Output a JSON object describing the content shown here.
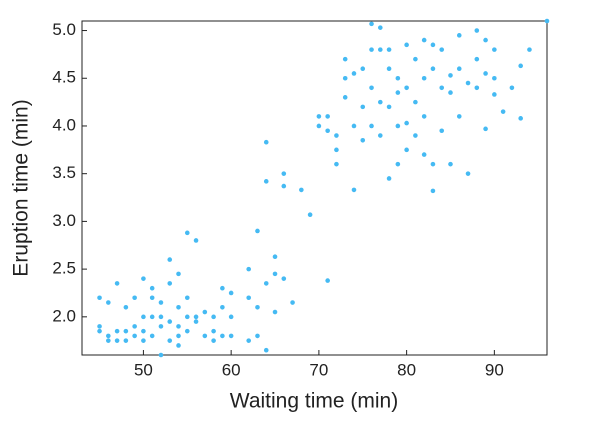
{
  "chart_data": {
    "type": "scatter",
    "x_label": "Waiting time (min)",
    "y_label": "Eruption time (min)",
    "xlim": [
      43,
      96
    ],
    "ylim": [
      1.6,
      5.1
    ],
    "xticks": [
      50,
      60,
      70,
      80,
      90
    ],
    "yticks": [
      {
        "value": 2.0,
        "label": "2.0"
      },
      2.5,
      {
        "value": 3.0,
        "label": "3.0"
      },
      3.5,
      {
        "value": 4.0,
        "label": "4.0"
      },
      4.5,
      {
        "value": 5.0,
        "label": "5.0"
      }
    ],
    "series": [
      {
        "color": "#45baf3",
        "x": [
          45,
          45,
          45,
          46,
          46,
          46,
          47,
          47,
          47,
          48,
          48,
          48,
          49,
          49,
          49,
          50,
          50,
          50,
          50,
          51,
          51,
          51,
          51,
          52,
          52,
          52,
          52,
          53,
          53,
          53,
          53,
          54,
          54,
          54,
          54,
          54,
          55,
          55,
          55,
          55,
          56,
          56,
          56,
          57,
          57,
          58,
          58,
          58,
          59,
          59,
          59,
          60,
          60,
          60,
          62,
          62,
          62,
          63,
          63,
          63,
          64,
          64,
          65,
          65,
          65,
          66,
          67,
          64,
          64,
          66,
          66,
          68,
          69,
          71,
          70,
          70,
          71,
          71,
          72,
          72,
          72,
          73,
          73,
          73,
          74,
          74,
          74,
          75,
          75,
          75,
          76,
          76,
          76,
          76,
          77,
          77,
          77,
          77,
          78,
          78,
          78,
          78,
          79,
          79,
          79,
          79,
          80,
          80,
          80,
          80,
          81,
          81,
          81,
          82,
          82,
          82,
          82,
          83,
          83,
          83,
          83,
          84,
          84,
          84,
          85,
          85,
          85,
          86,
          86,
          86,
          87,
          87,
          88,
          88,
          88,
          89,
          89,
          89,
          90,
          90,
          90,
          91,
          92,
          93,
          93,
          94,
          96
        ],
        "values": [
          2.2,
          1.9,
          1.85,
          2.15,
          1.8,
          1.75,
          2.35,
          1.85,
          1.75,
          1.75,
          2.1,
          1.85,
          2.2,
          1.9,
          1.8,
          2.4,
          2.0,
          1.85,
          1.75,
          2.3,
          2.0,
          1.8,
          2.2,
          1.6,
          2.15,
          1.9,
          2.0,
          2.6,
          1.95,
          1.75,
          2.35,
          1.8,
          2.1,
          1.9,
          2.45,
          1.7,
          2.88,
          2.0,
          1.85,
          2.2,
          2.8,
          2.0,
          1.95,
          2.05,
          1.8,
          2.0,
          1.85,
          1.75,
          2.3,
          1.8,
          2.1,
          2.25,
          1.8,
          2.0,
          2.5,
          2.2,
          1.75,
          2.9,
          2.1,
          1.8,
          2.35,
          1.65,
          2.63,
          2.45,
          2.05,
          2.4,
          2.15,
          3.83,
          3.42,
          3.5,
          3.37,
          3.33,
          3.07,
          2.38,
          4.1,
          4.0,
          4.1,
          3.95,
          3.75,
          3.6,
          3.9,
          4.3,
          4.5,
          4.7,
          4.0,
          4.55,
          3.33,
          4.6,
          4.2,
          3.85,
          5.07,
          4.8,
          4.4,
          4.0,
          5.03,
          4.8,
          4.25,
          3.9,
          4.6,
          4.2,
          3.45,
          4.8,
          4.5,
          4.35,
          4.0,
          3.6,
          4.85,
          4.4,
          4.03,
          3.75,
          4.7,
          4.25,
          3.9,
          4.9,
          4.5,
          4.1,
          3.7,
          4.85,
          4.6,
          3.6,
          3.32,
          4.8,
          4.4,
          3.95,
          4.53,
          4.35,
          3.6,
          4.95,
          4.1,
          4.6,
          4.45,
          3.5,
          5.0,
          4.7,
          4.4,
          4.9,
          4.55,
          3.97,
          4.8,
          4.5,
          4.33,
          4.15,
          4.4,
          4.63,
          4.08,
          4.8,
          5.1
        ]
      }
    ]
  }
}
